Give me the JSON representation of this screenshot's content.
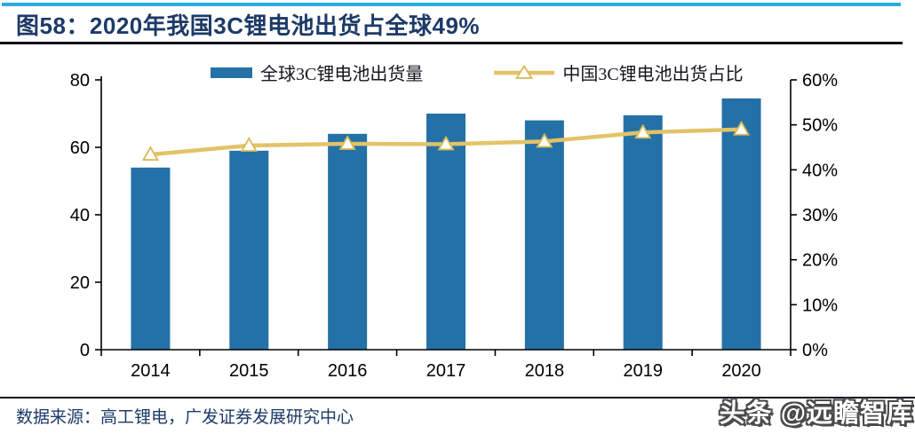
{
  "header": {
    "title": "图58：2020年我国3C锂电池出货占全球49%"
  },
  "chart_data": {
    "type": "bar",
    "subtype": "combo-bar-line-dual-axis",
    "title": "2020年我国3C锂电池出货占全球49%",
    "categories": [
      "2014",
      "2015",
      "2016",
      "2017",
      "2018",
      "2019",
      "2020"
    ],
    "series": [
      {
        "name": "全球3C锂电池出货量",
        "type": "bar",
        "axis": "left",
        "values": [
          54,
          59,
          64,
          70,
          68,
          69.5,
          74.5
        ]
      },
      {
        "name": "中国3C锂电池出货占比",
        "type": "line",
        "axis": "right",
        "unit": "%",
        "values": [
          43.4,
          45.4,
          45.8,
          45.7,
          46.3,
          48.3,
          49
        ]
      }
    ],
    "left_axis": {
      "min": 0,
      "max": 80,
      "tick_values": [
        0,
        20,
        40,
        60,
        80
      ],
      "tick_labels": [
        "0",
        "20",
        "40",
        "60",
        "80"
      ]
    },
    "right_axis": {
      "min": 0,
      "max": 60,
      "tick_values": [
        0,
        10,
        20,
        30,
        40,
        50,
        60
      ],
      "tick_labels": [
        "0%",
        "10%",
        "20%",
        "30%",
        "40%",
        "50%",
        "60%"
      ]
    },
    "legend_position": "top",
    "grid": false,
    "colors": {
      "bar": "#2471A7",
      "line": "#E2C367",
      "marker_fill": "#FFFDF5",
      "marker_stroke": "#D8B95B",
      "axis": "#000000",
      "accent_top": "#29ABE2",
      "title_text": "#1C3A67"
    }
  },
  "legend": {
    "items": [
      {
        "label": "全球3C锂电池出货量"
      },
      {
        "label": "中国3C锂电池出货占比"
      }
    ]
  },
  "footer": {
    "source": "数据来源：高工锂电，广发证券发展研究中心",
    "watermark": "头条 @远瞻智库"
  }
}
